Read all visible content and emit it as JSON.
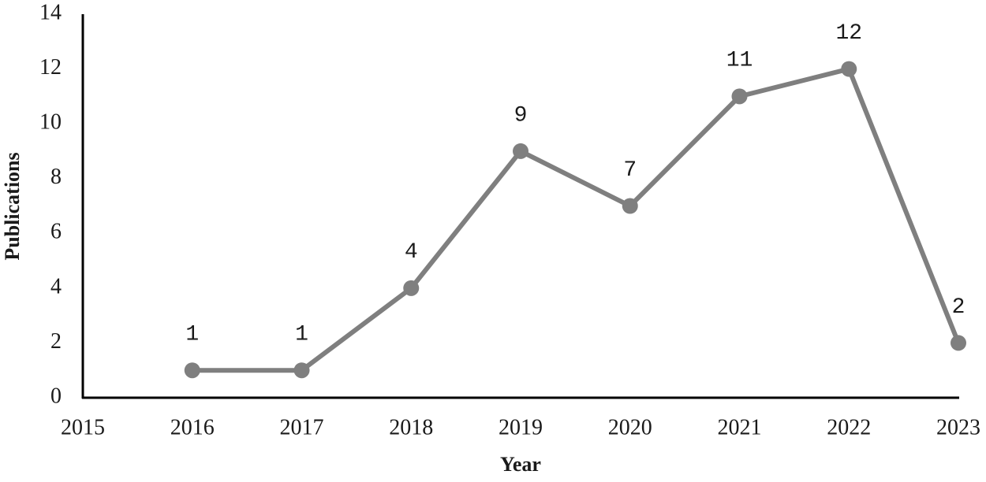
{
  "chart_data": {
    "type": "line",
    "x_label": "Year",
    "y_label": "Publications",
    "x": [
      2016,
      2017,
      2018,
      2019,
      2020,
      2021,
      2022,
      2023
    ],
    "values": [
      1,
      1,
      4,
      9,
      7,
      11,
      12,
      2
    ],
    "color": "#7f7f7f",
    "xlim": [
      2015,
      2023
    ],
    "xticks": [
      2015,
      2016,
      2017,
      2018,
      2019,
      2020,
      2021,
      2022,
      2023
    ],
    "ylim": [
      0,
      14
    ],
    "yticks": [
      0,
      2,
      4,
      6,
      8,
      10,
      12,
      14
    ],
    "grid": false
  }
}
